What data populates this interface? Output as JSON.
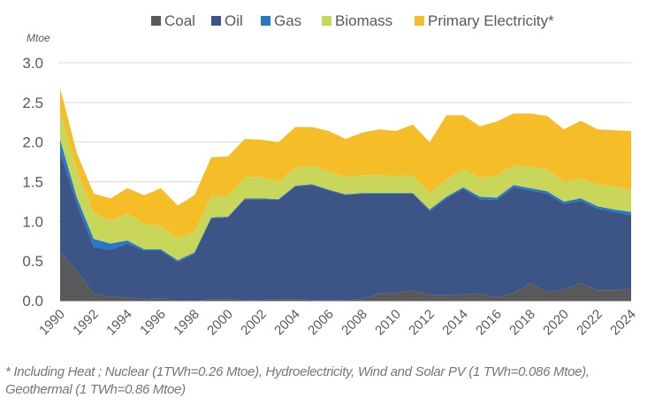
{
  "chart_data": {
    "type": "area",
    "stacked": true,
    "title": "",
    "xlabel": "",
    "ylabel": "Mtoe",
    "ylim": [
      0,
      3.0
    ],
    "yticks": [
      "0.0",
      "0.5",
      "1.0",
      "1.5",
      "2.0",
      "2.5",
      "3.0"
    ],
    "ytick_values": [
      0,
      0.5,
      1.0,
      1.5,
      2.0,
      2.5,
      3.0
    ],
    "grid": true,
    "legend_position": "top",
    "x": [
      1990,
      1991,
      1992,
      1993,
      1994,
      1995,
      1996,
      1997,
      1998,
      1999,
      2000,
      2001,
      2002,
      2003,
      2004,
      2005,
      2006,
      2007,
      2008,
      2009,
      2010,
      2011,
      2012,
      2013,
      2014,
      2015,
      2016,
      2017,
      2018,
      2019,
      2020,
      2021,
      2022,
      2023,
      2024
    ],
    "xticks": [
      "1990",
      "1992",
      "1994",
      "1996",
      "1998",
      "2000",
      "2002",
      "2004",
      "2006",
      "2008",
      "2010",
      "2012",
      "2014",
      "2016",
      "2018",
      "2020",
      "2022",
      "2024"
    ],
    "series": [
      {
        "name": "Coal",
        "color": "#595959",
        "values": [
          0.62,
          0.37,
          0.09,
          0.05,
          0.04,
          0.02,
          0.03,
          0.0,
          0.0,
          0.02,
          0.02,
          0.01,
          0.01,
          0.02,
          0.02,
          0.01,
          0.01,
          0.01,
          0.02,
          0.09,
          0.1,
          0.13,
          0.07,
          0.07,
          0.08,
          0.09,
          0.04,
          0.1,
          0.22,
          0.11,
          0.14,
          0.22,
          0.13,
          0.13,
          0.15
        ]
      },
      {
        "name": "Oil",
        "color": "#3d5586",
        "values": [
          1.25,
          0.85,
          0.59,
          0.59,
          0.68,
          0.61,
          0.6,
          0.49,
          0.59,
          1.02,
          1.03,
          1.27,
          1.27,
          1.25,
          1.42,
          1.45,
          1.38,
          1.32,
          1.33,
          1.26,
          1.25,
          1.22,
          1.06,
          1.22,
          1.33,
          1.19,
          1.23,
          1.33,
          1.17,
          1.24,
          1.08,
          1.04,
          1.03,
          0.99,
          0.93
        ]
      },
      {
        "name": "Gas",
        "color": "#2878c8",
        "values": [
          0.16,
          0.08,
          0.1,
          0.08,
          0.04,
          0.02,
          0.02,
          0.02,
          0.02,
          0.01,
          0.01,
          0.01,
          0.01,
          0.01,
          0.01,
          0.01,
          0.01,
          0.01,
          0.01,
          0.01,
          0.01,
          0.01,
          0.02,
          0.02,
          0.02,
          0.03,
          0.03,
          0.03,
          0.03,
          0.03,
          0.03,
          0.03,
          0.03,
          0.03,
          0.04
        ]
      },
      {
        "name": "Biomass",
        "color": "#c8d65a",
        "values": [
          0.37,
          0.35,
          0.33,
          0.29,
          0.34,
          0.32,
          0.29,
          0.28,
          0.26,
          0.27,
          0.26,
          0.27,
          0.27,
          0.22,
          0.23,
          0.23,
          0.23,
          0.22,
          0.22,
          0.22,
          0.21,
          0.22,
          0.21,
          0.22,
          0.23,
          0.24,
          0.28,
          0.25,
          0.27,
          0.28,
          0.24,
          0.25,
          0.28,
          0.29,
          0.28
        ]
      },
      {
        "name": "Primary Electricity*",
        "color": "#f5be28",
        "values": [
          0.28,
          0.21,
          0.24,
          0.28,
          0.32,
          0.36,
          0.48,
          0.41,
          0.46,
          0.49,
          0.5,
          0.48,
          0.47,
          0.5,
          0.51,
          0.49,
          0.51,
          0.48,
          0.54,
          0.58,
          0.57,
          0.64,
          0.64,
          0.81,
          0.68,
          0.65,
          0.68,
          0.65,
          0.67,
          0.67,
          0.67,
          0.73,
          0.69,
          0.71,
          0.74
        ]
      }
    ],
    "footnote": "* Including Heat ; Nuclear (1TWh=0.26 Mtoe), Hydroelectricity, Wind and Solar PV (1 TWh=0.086 Mtoe), Geothermal (1 TWh=0.86 Mtoe)"
  }
}
